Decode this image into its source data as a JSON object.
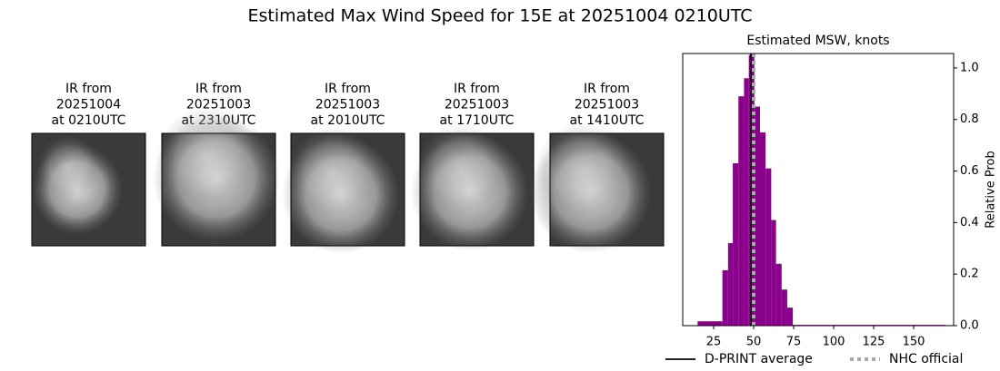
{
  "title": "Estimated Max Wind Speed for 15E at 20251004 0210UTC",
  "panels": [
    {
      "lines": [
        "IR from",
        "20251004",
        "at 0210UTC"
      ]
    },
    {
      "lines": [
        "IR from",
        "20251003",
        "at 2310UTC"
      ]
    },
    {
      "lines": [
        "IR from",
        "20251003",
        "at 2010UTC"
      ]
    },
    {
      "lines": [
        "IR from",
        "20251003",
        "at 1710UTC"
      ]
    },
    {
      "lines": [
        "IR from",
        "20251003",
        "at 1410UTC"
      ]
    }
  ],
  "chart_data": {
    "type": "histogram",
    "title": "Estimated MSW, knots",
    "y_label": "Relative Prob",
    "bins": [
      15,
      30.5,
      34,
      37,
      40.5,
      44,
      47,
      50.5,
      54,
      57.5,
      61,
      64,
      67.5,
      71,
      74.5,
      170
    ],
    "values": [
      0.017,
      0.215,
      0.32,
      0.63,
      0.89,
      0.96,
      1.05,
      0.85,
      0.75,
      0.61,
      0.41,
      0.24,
      0.14,
      0.07,
      0.003
    ],
    "color": "#8b008b",
    "xlim": [
      5.7,
      175
    ],
    "ylim": [
      0,
      1.056
    ],
    "xticks": [
      25,
      50,
      75,
      100,
      125,
      150
    ],
    "yticks": [
      {
        "value": 0,
        "label": "0.0"
      },
      {
        "value": 0.2,
        "label": "0.2"
      },
      {
        "value": 0.4,
        "label": "0.4"
      },
      {
        "value": 0.6,
        "label": "0.6"
      },
      {
        "value": 0.8,
        "label": "0.8"
      },
      {
        "value": 1,
        "label": "1.0"
      }
    ],
    "lines": [
      {
        "name": "D-PRINT average",
        "value": 48.3,
        "color": "#000000",
        "dashed": false
      },
      {
        "name": "NHC official",
        "value": 50,
        "color": "#aaaaaa",
        "dashed": true
      }
    ]
  }
}
